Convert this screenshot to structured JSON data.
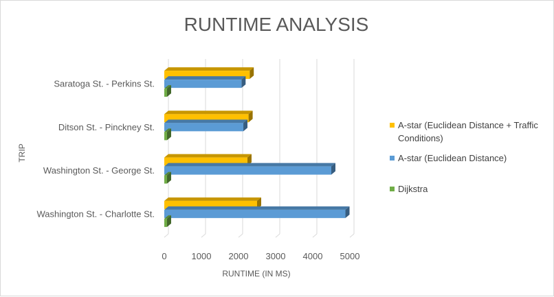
{
  "chart_data": {
    "type": "bar",
    "orientation": "horizontal",
    "style": "3d-clustered-bar",
    "title": "RUNTIME ANALYSIS",
    "xlabel": "RUNTIME (IN MS)",
    "ylabel": "TRIP",
    "categories": [
      "Washington St. - Charlotte St.",
      "Washington St. - George St.",
      "Ditson St. - Pinckney St.",
      "Saratoga St. - Perkins St."
    ],
    "series": [
      {
        "name": "Dijkstra",
        "color": "#70ad47",
        "values": [
          5,
          5,
          5,
          5
        ]
      },
      {
        "name": "A-star (Euclidean Distance)",
        "color": "#5b9bd5",
        "values": [
          4880,
          4500,
          2130,
          2080
        ]
      },
      {
        "name": "A-star (Euclidean Distance + Traffic Conditions)",
        "color": "#ffc000",
        "values": [
          2500,
          2240,
          2270,
          2300
        ]
      }
    ],
    "xlim": [
      0,
      5000
    ],
    "xticks": [
      "0",
      "1000",
      "2000",
      "3000",
      "4000",
      "5000"
    ],
    "grid": true,
    "legend_position": "right",
    "legend_lines": [
      {
        "series": "A-star (Euclidean Distance + Traffic Conditions)",
        "lines": [
          "A-star (Euclidean Distance + Traffic",
          "Conditions)"
        ]
      },
      {
        "series": "A-star (Euclidean Distance)",
        "lines": [
          "A-star (Euclidean Distance)"
        ]
      },
      {
        "series": "Dijkstra",
        "lines": [
          "Dijkstra"
        ]
      }
    ]
  }
}
